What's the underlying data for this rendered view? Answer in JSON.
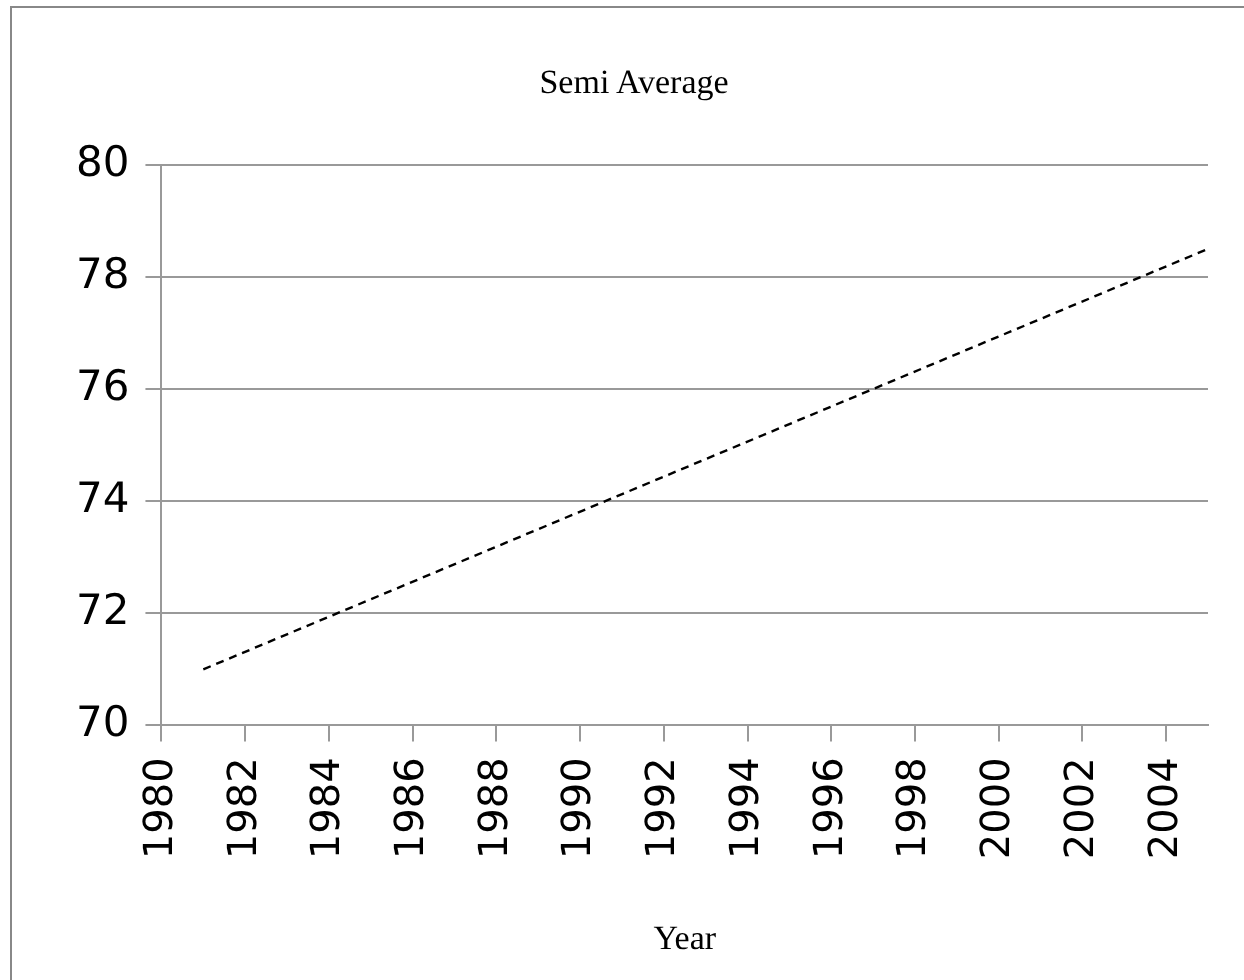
{
  "chart_data": {
    "type": "line",
    "title": "Semi Average",
    "xlabel": "Year",
    "x": [
      1981,
      2005
    ],
    "series": [
      {
        "color": "#000000",
        "values": [
          71.0,
          78.5
        ]
      }
    ],
    "xlim": [
      1980,
      2005
    ],
    "xticks": [
      1980,
      1982,
      1984,
      1986,
      1988,
      1990,
      1992,
      1994,
      1996,
      1998,
      2000,
      2002,
      2004
    ],
    "ylim": [
      70,
      80
    ],
    "yticks": [
      70,
      72,
      74,
      76,
      78,
      80
    ],
    "grid": "y",
    "legend": false,
    "marker": "none",
    "line_style": "dashed"
  }
}
